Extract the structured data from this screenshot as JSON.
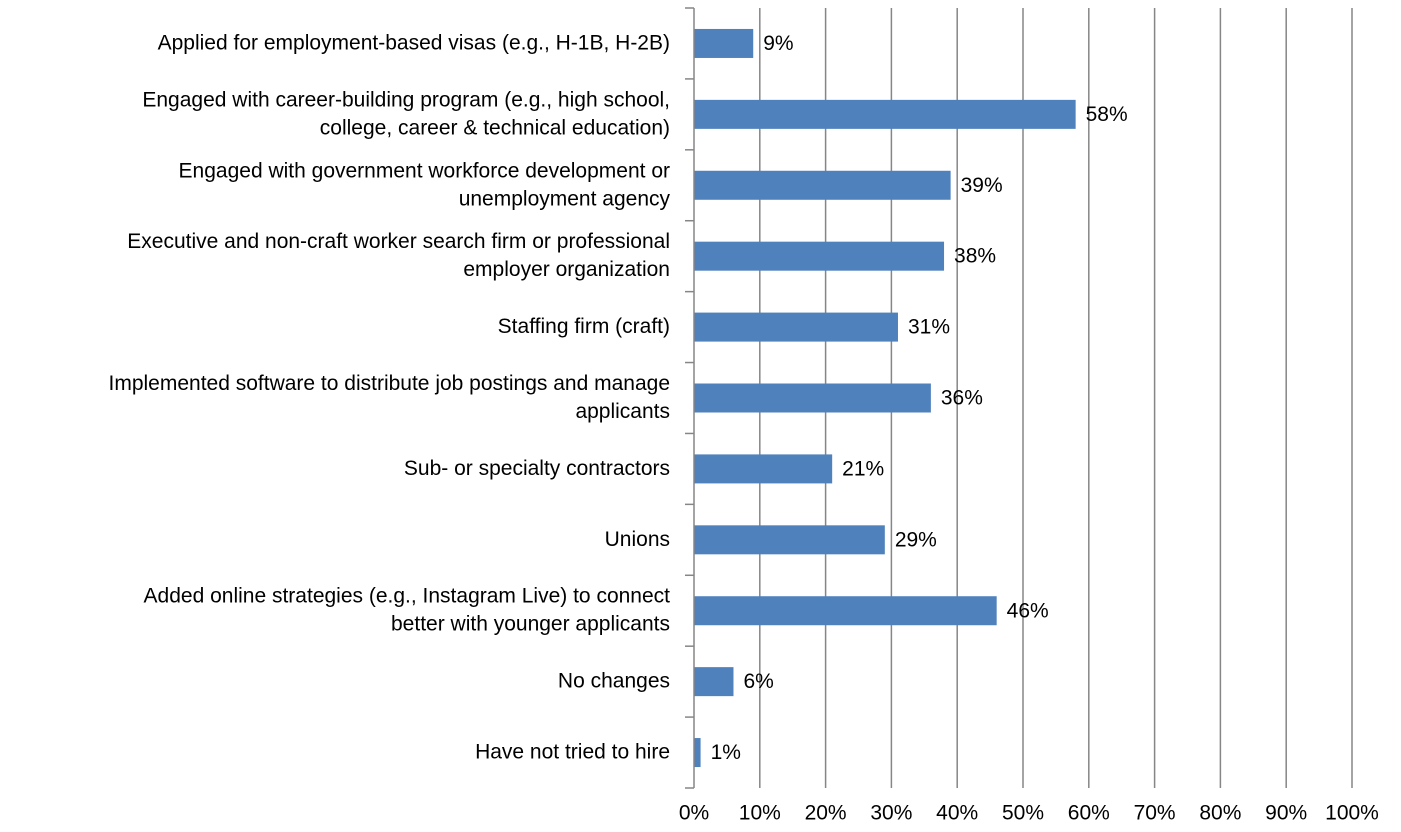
{
  "chart_data": {
    "type": "bar",
    "orientation": "horizontal",
    "categories": [
      [
        "Applied for employment-based visas (e.g., H-1B, H-2B)"
      ],
      [
        "Engaged with career-building program (e.g., high school,",
        "college, career & technical education)"
      ],
      [
        "Engaged with government workforce development or",
        "unemployment agency"
      ],
      [
        "Executive and non-craft worker search firm or professional",
        "employer organization"
      ],
      [
        "Staffing firm (craft)"
      ],
      [
        "Implemented software to distribute job postings and manage",
        "applicants"
      ],
      [
        "Sub- or specialty contractors"
      ],
      [
        "Unions"
      ],
      [
        "Added online strategies (e.g., Instagram Live) to connect",
        "better with younger applicants"
      ],
      [
        "No changes"
      ],
      [
        "Have not tried to hire"
      ]
    ],
    "values": [
      9,
      58,
      39,
      38,
      31,
      36,
      21,
      29,
      46,
      6,
      1
    ],
    "value_labels": [
      "9%",
      "58%",
      "39%",
      "38%",
      "31%",
      "36%",
      "21%",
      "29%",
      "46%",
      "6%",
      "1%"
    ],
    "x_ticks": [
      "0%",
      "10%",
      "20%",
      "30%",
      "40%",
      "50%",
      "60%",
      "70%",
      "80%",
      "90%",
      "100%"
    ],
    "xlim": [
      0,
      100
    ],
    "grid": true,
    "legend": "none",
    "colors": {
      "bar": "#4F81BD",
      "grid": "#868686",
      "axis": "#868686"
    }
  }
}
